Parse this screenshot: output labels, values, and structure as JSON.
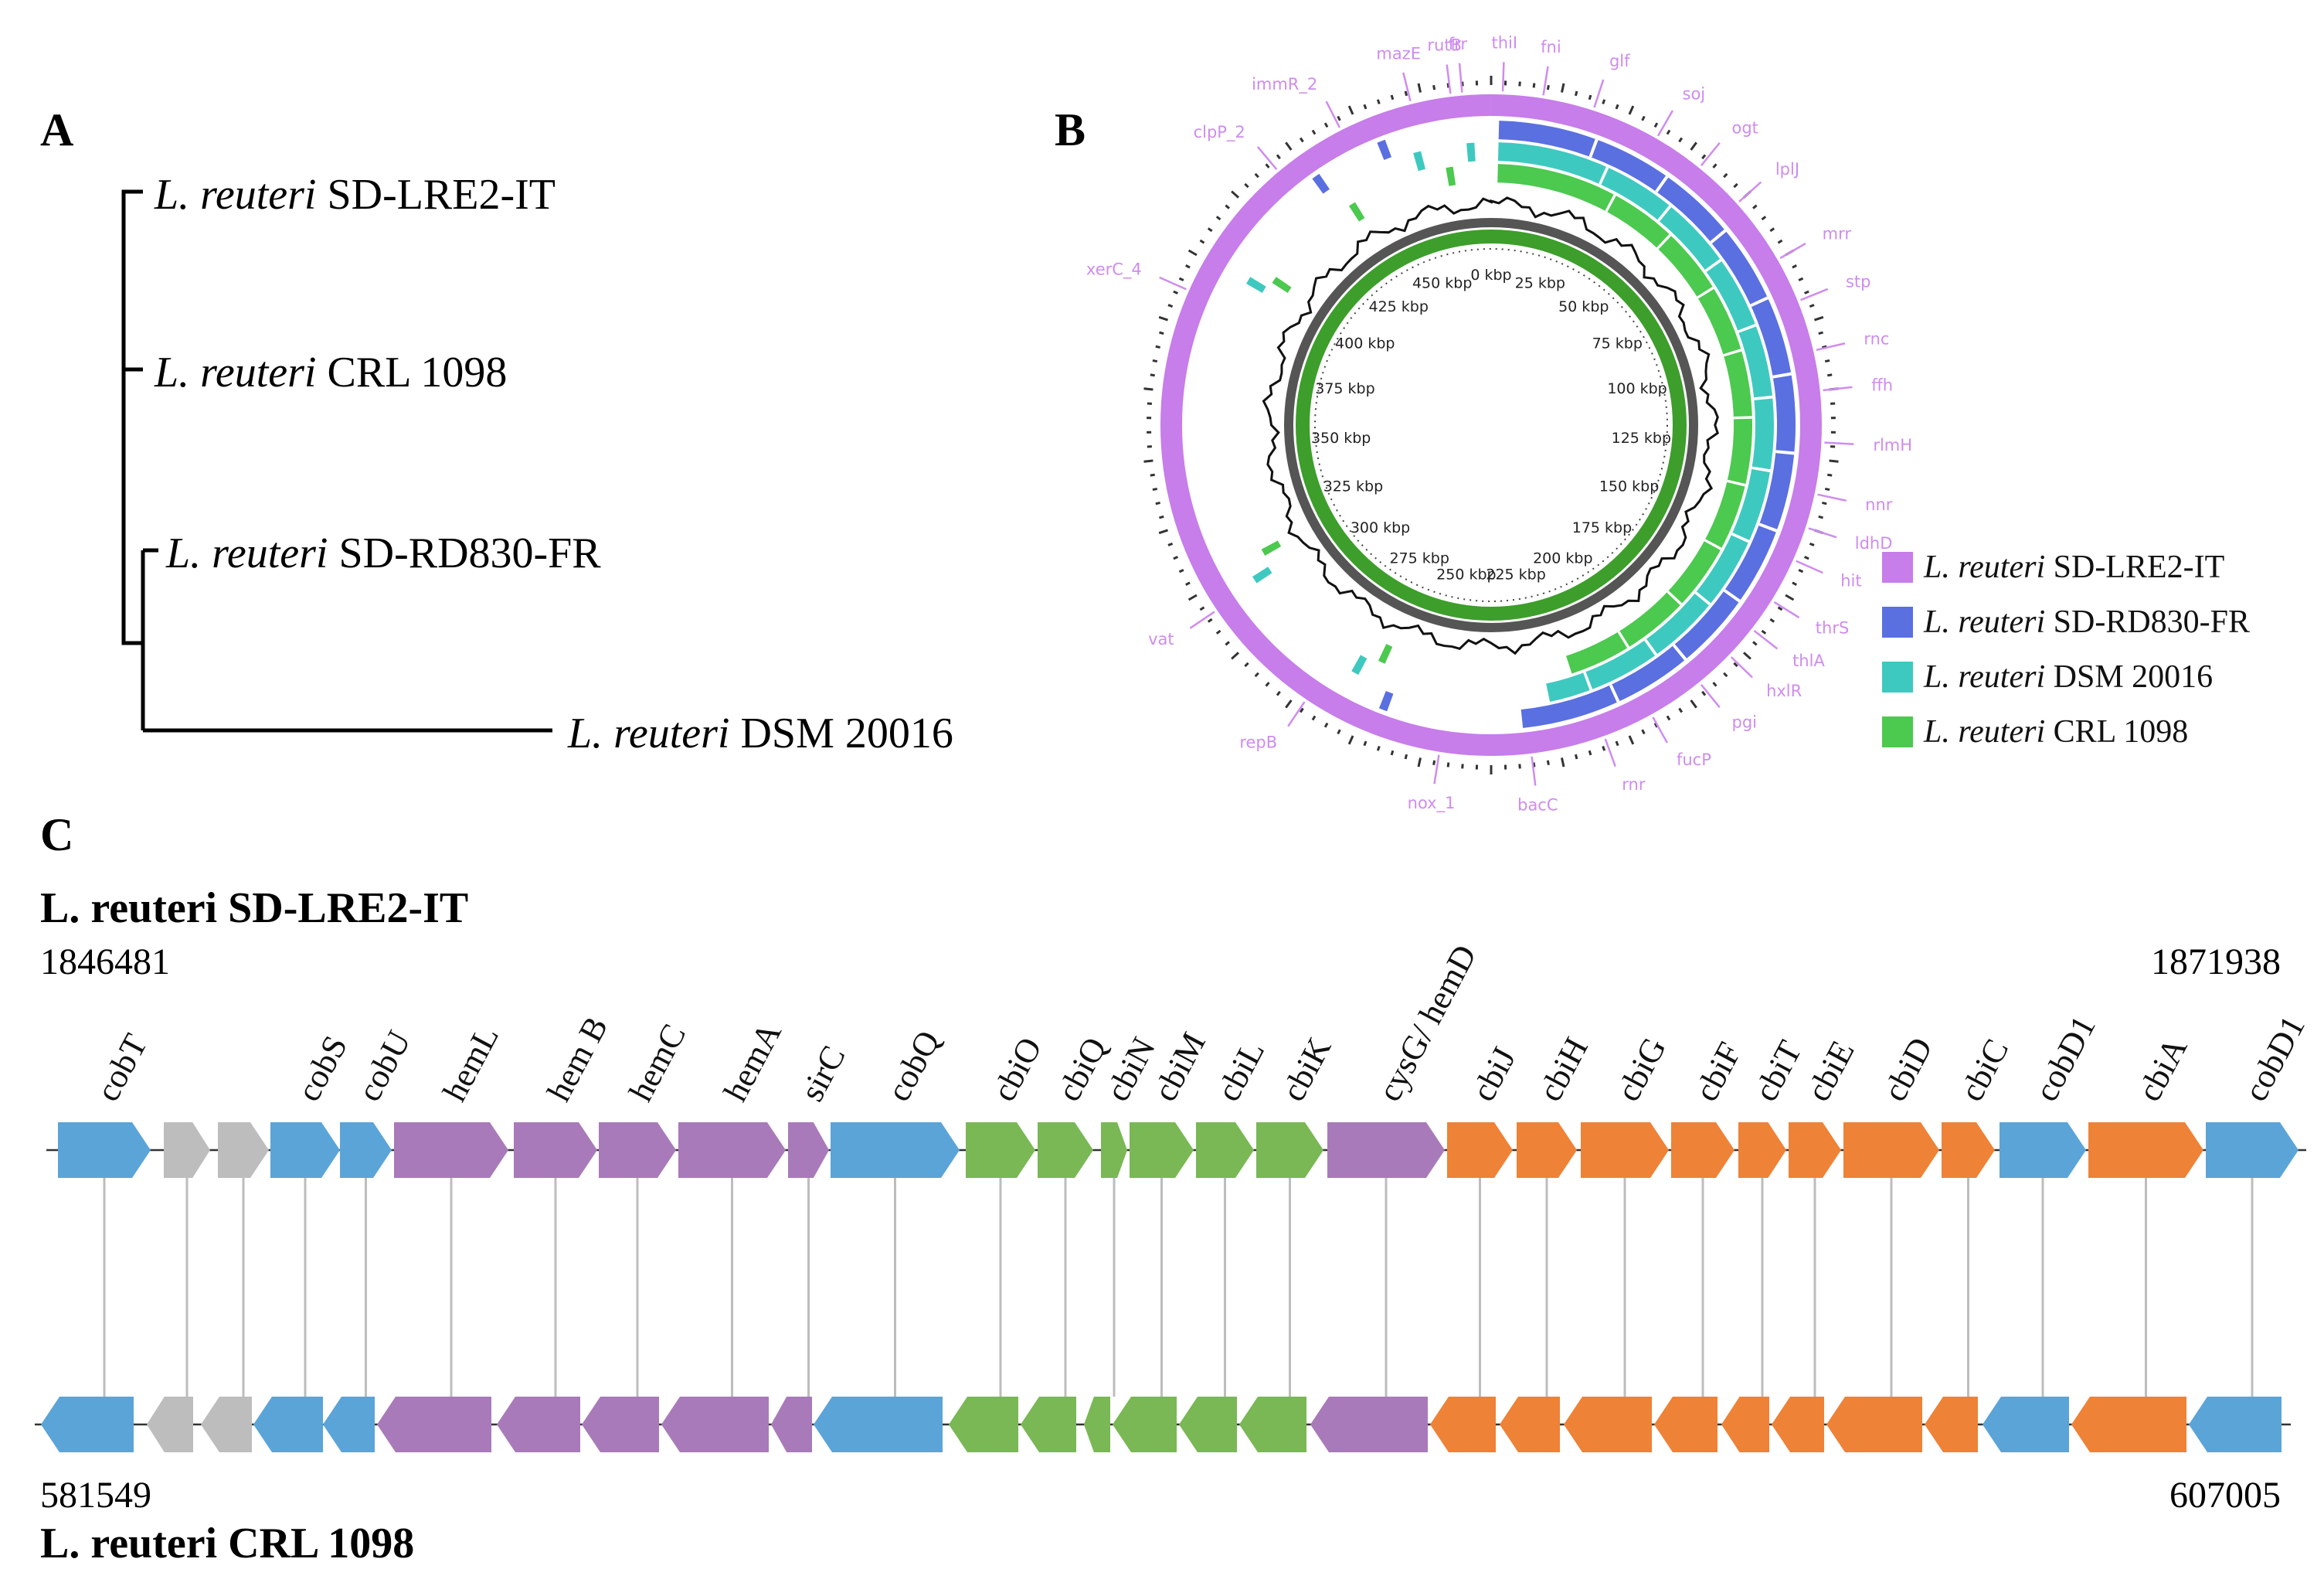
{
  "panels": {
    "a": "A",
    "b": "B",
    "c": "C"
  },
  "tree": {
    "leaves": [
      {
        "species": "L. reuteri",
        "strain": "SD-LRE2-IT"
      },
      {
        "species": "L. reuteri",
        "strain": "CRL 1098"
      },
      {
        "species": "L. reuteri",
        "strain": "SD-RD830-FR"
      },
      {
        "species": "L. reuteri",
        "strain": "DSM 20016"
      }
    ]
  },
  "circular_map": {
    "scale_labels": [
      "0 kbp",
      "25 kbp",
      "50 kbp",
      "75 kbp",
      "100 kbp",
      "125 kbp",
      "150 kbp",
      "175 kbp",
      "200 kbp",
      "225 kbp",
      "250 kbp",
      "275 kbp",
      "300 kbp",
      "325 kbp",
      "350 kbp",
      "375 kbp",
      "400 kbp",
      "425 kbp",
      "450 kbp"
    ],
    "genes": [
      "frr",
      "thiI",
      "fni",
      "glf",
      "soj",
      "ogt",
      "lplJ",
      "mrr",
      "stp",
      "rnc",
      "ffh",
      "rlmH",
      "nnr",
      "ldhD",
      "hit",
      "thrS",
      "thlA",
      "hxlR",
      "pgi",
      "fucP",
      "rnr",
      "bacC",
      "nox_1",
      "repB",
      "vat",
      "xerC_4",
      "clpP_2",
      "immR_2",
      "mazE",
      "rutB"
    ],
    "legend": [
      {
        "species": "L. reuteri",
        "strain": "SD-LRE2-IT",
        "color": "#c77dea"
      },
      {
        "species": "L. reuteri",
        "strain": "SD-RD830-FR",
        "color": "#5a6fe0"
      },
      {
        "species": "L. reuteri",
        "strain": "DSM 20016",
        "color": "#3ec9c0"
      },
      {
        "species": "L. reuteri",
        "strain": "CRL 1098",
        "color": "#4cc94f"
      }
    ],
    "colors": {
      "gene_label": "#cf8cef",
      "backbone": "#555555",
      "inner_green": "#3d9e2b"
    }
  },
  "cluster": {
    "top_title": "L. reuteri SD-LRE2-IT",
    "top_start": "1846481",
    "top_end": "1871938",
    "bottom_title": "L. reuteri CRL 1098",
    "bottom_start": "581549",
    "bottom_end": "607005",
    "colors": {
      "blue": "#5ba4d8",
      "gray": "#bdbdbd",
      "purple": "#a97ab9",
      "green": "#79b855",
      "orange": "#ee8237"
    },
    "genes": [
      {
        "name": "cobT",
        "color": "blue"
      },
      {
        "name": "",
        "color": "gray"
      },
      {
        "name": "",
        "color": "gray"
      },
      {
        "name": "cobS",
        "color": "blue"
      },
      {
        "name": "cobU",
        "color": "blue"
      },
      {
        "name": "hemL",
        "color": "purple"
      },
      {
        "name": "hem B",
        "color": "purple"
      },
      {
        "name": "hemC",
        "color": "purple"
      },
      {
        "name": "hemA",
        "color": "purple"
      },
      {
        "name": "sirC",
        "color": "purple"
      },
      {
        "name": "cobQ",
        "color": "blue"
      },
      {
        "name": "cbiO",
        "color": "green"
      },
      {
        "name": "cbiQ",
        "color": "green"
      },
      {
        "name": "cbiN",
        "color": "green"
      },
      {
        "name": "cbiM",
        "color": "green"
      },
      {
        "name": "cbiL",
        "color": "green"
      },
      {
        "name": "cbiK",
        "color": "green"
      },
      {
        "name": "cysG/ hemD",
        "color": "purple"
      },
      {
        "name": "cbiJ",
        "color": "orange"
      },
      {
        "name": "cbiH",
        "color": "orange"
      },
      {
        "name": "cbiG",
        "color": "orange"
      },
      {
        "name": "cbiF",
        "color": "orange"
      },
      {
        "name": "cbiT",
        "color": "orange"
      },
      {
        "name": "cbiE",
        "color": "orange"
      },
      {
        "name": "cbiD",
        "color": "orange"
      },
      {
        "name": "cbiC",
        "color": "orange"
      },
      {
        "name": "cobD1",
        "color": "blue"
      },
      {
        "name": "cbiA",
        "color": "orange"
      },
      {
        "name": "cobD1",
        "color": "blue"
      }
    ]
  }
}
